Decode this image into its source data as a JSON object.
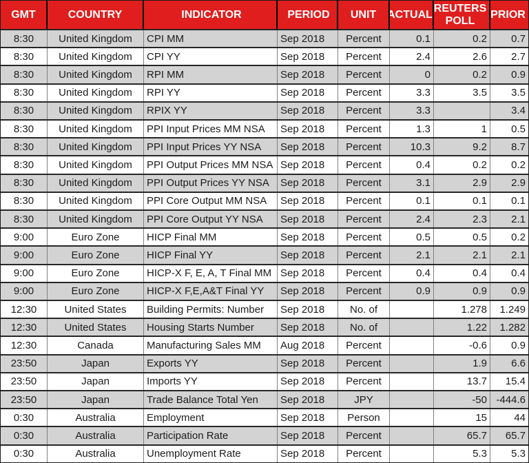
{
  "colors": {
    "header_bg": "#E11E1E",
    "header_text": "#FFFFFF",
    "stripe_row_bg": "#D3D3D3",
    "row_bg": "#FFFFFF",
    "grid_vertical": "#7F7F7F",
    "grid_horizontal": "#262626"
  },
  "chart_data": {
    "type": "table",
    "columns": [
      {
        "key": "gmt",
        "label": "GMT"
      },
      {
        "key": "country",
        "label": "COUNTRY"
      },
      {
        "key": "indicator",
        "label": "INDICATOR"
      },
      {
        "key": "period",
        "label": "PERIOD"
      },
      {
        "key": "unit",
        "label": "UNIT"
      },
      {
        "key": "actual",
        "label": "ACTUAL"
      },
      {
        "key": "poll",
        "label": "REUTERS POLL"
      },
      {
        "key": "prior",
        "label": "PRIOR"
      }
    ],
    "rows": [
      {
        "gmt": "8:30",
        "country": "United Kingdom",
        "indicator": "CPI MM",
        "period": "Sep 2018",
        "unit": "Percent",
        "actual": "0.1",
        "poll": "0.2",
        "prior": "0.7"
      },
      {
        "gmt": "8:30",
        "country": "United Kingdom",
        "indicator": "CPI YY",
        "period": "Sep 2018",
        "unit": "Percent",
        "actual": "2.4",
        "poll": "2.6",
        "prior": "2.7"
      },
      {
        "gmt": "8:30",
        "country": "United Kingdom",
        "indicator": "RPI MM",
        "period": "Sep 2018",
        "unit": "Percent",
        "actual": "0",
        "poll": "0.2",
        "prior": "0.9"
      },
      {
        "gmt": "8:30",
        "country": "United Kingdom",
        "indicator": "RPI YY",
        "period": "Sep 2018",
        "unit": "Percent",
        "actual": "3.3",
        "poll": "3.5",
        "prior": "3.5"
      },
      {
        "gmt": "8:30",
        "country": "United Kingdom",
        "indicator": "RPIX YY",
        "period": "Sep 2018",
        "unit": "Percent",
        "actual": "3.3",
        "poll": "",
        "prior": "3.4"
      },
      {
        "gmt": "8:30",
        "country": "United Kingdom",
        "indicator": "PPI Input Prices MM NSA",
        "period": "Sep 2018",
        "unit": "Percent",
        "actual": "1.3",
        "poll": "1",
        "prior": "0.5"
      },
      {
        "gmt": "8:30",
        "country": "United Kingdom",
        "indicator": "PPI Input Prices YY NSA",
        "period": "Sep 2018",
        "unit": "Percent",
        "actual": "10.3",
        "poll": "9.2",
        "prior": "8.7"
      },
      {
        "gmt": "8:30",
        "country": "United Kingdom",
        "indicator": "PPI Output Prices MM NSA",
        "period": "Sep 2018",
        "unit": "Percent",
        "actual": "0.4",
        "poll": "0.2",
        "prior": "0.2"
      },
      {
        "gmt": "8:30",
        "country": "United Kingdom",
        "indicator": "PPI Output Prices YY NSA",
        "period": "Sep 2018",
        "unit": "Percent",
        "actual": "3.1",
        "poll": "2.9",
        "prior": "2.9"
      },
      {
        "gmt": "8:30",
        "country": "United Kingdom",
        "indicator": "PPI Core Output MM NSA",
        "period": "Sep 2018",
        "unit": "Percent",
        "actual": "0.1",
        "poll": "0.1",
        "prior": "0.1"
      },
      {
        "gmt": "8:30",
        "country": "United Kingdom",
        "indicator": "PPI Core Output YY NSA",
        "period": "Sep 2018",
        "unit": "Percent",
        "actual": "2.4",
        "poll": "2.3",
        "prior": "2.1"
      },
      {
        "gmt": "9:00",
        "country": "Euro Zone",
        "indicator": "HICP Final MM",
        "period": "Sep 2018",
        "unit": "Percent",
        "actual": "0.5",
        "poll": "0.5",
        "prior": "0.2"
      },
      {
        "gmt": "9:00",
        "country": "Euro Zone",
        "indicator": "HICP Final YY",
        "period": "Sep 2018",
        "unit": "Percent",
        "actual": "2.1",
        "poll": "2.1",
        "prior": "2.1"
      },
      {
        "gmt": "9:00",
        "country": "Euro Zone",
        "indicator": "HICP-X F, E, A, T Final MM",
        "period": "Sep 2018",
        "unit": "Percent",
        "actual": "0.4",
        "poll": "0.4",
        "prior": "0.4"
      },
      {
        "gmt": "9:00",
        "country": "Euro Zone",
        "indicator": "HICP-X F,E,A&T Final YY",
        "period": "Sep 2018",
        "unit": "Percent",
        "actual": "0.9",
        "poll": "0.9",
        "prior": "0.9"
      },
      {
        "gmt": "12:30",
        "country": "United States",
        "indicator": "Building Permits: Number",
        "period": "Sep 2018",
        "unit": "No. of",
        "actual": "",
        "poll": "1.278",
        "prior": "1.249"
      },
      {
        "gmt": "12:30",
        "country": "United States",
        "indicator": "Housing Starts Number",
        "period": "Sep 2018",
        "unit": "No. of",
        "actual": "",
        "poll": "1.22",
        "prior": "1.282"
      },
      {
        "gmt": "12:30",
        "country": "Canada",
        "indicator": "Manufacturing Sales MM",
        "period": "Aug 2018",
        "unit": "Percent",
        "actual": "",
        "poll": "-0.6",
        "prior": "0.9"
      },
      {
        "gmt": "23:50",
        "country": "Japan",
        "indicator": "Exports YY",
        "period": "Sep 2018",
        "unit": "Percent",
        "actual": "",
        "poll": "1.9",
        "prior": "6.6"
      },
      {
        "gmt": "23:50",
        "country": "Japan",
        "indicator": "Imports YY",
        "period": "Sep 2018",
        "unit": "Percent",
        "actual": "",
        "poll": "13.7",
        "prior": "15.4"
      },
      {
        "gmt": "23:50",
        "country": "Japan",
        "indicator": "Trade Balance Total Yen",
        "period": "Sep 2018",
        "unit": "JPY",
        "actual": "",
        "poll": "-50",
        "prior": "-444.6"
      },
      {
        "gmt": "0:30",
        "country": "Australia",
        "indicator": "Employment",
        "period": "Sep 2018",
        "unit": "Person",
        "actual": "",
        "poll": "15",
        "prior": "44"
      },
      {
        "gmt": "0:30",
        "country": "Australia",
        "indicator": "Participation Rate",
        "period": "Sep 2018",
        "unit": "Percent",
        "actual": "",
        "poll": "65.7",
        "prior": "65.7"
      },
      {
        "gmt": "0:30",
        "country": "Australia",
        "indicator": "Unemployment Rate",
        "period": "Sep 2018",
        "unit": "Percent",
        "actual": "",
        "poll": "5.3",
        "prior": "5.3"
      }
    ]
  }
}
